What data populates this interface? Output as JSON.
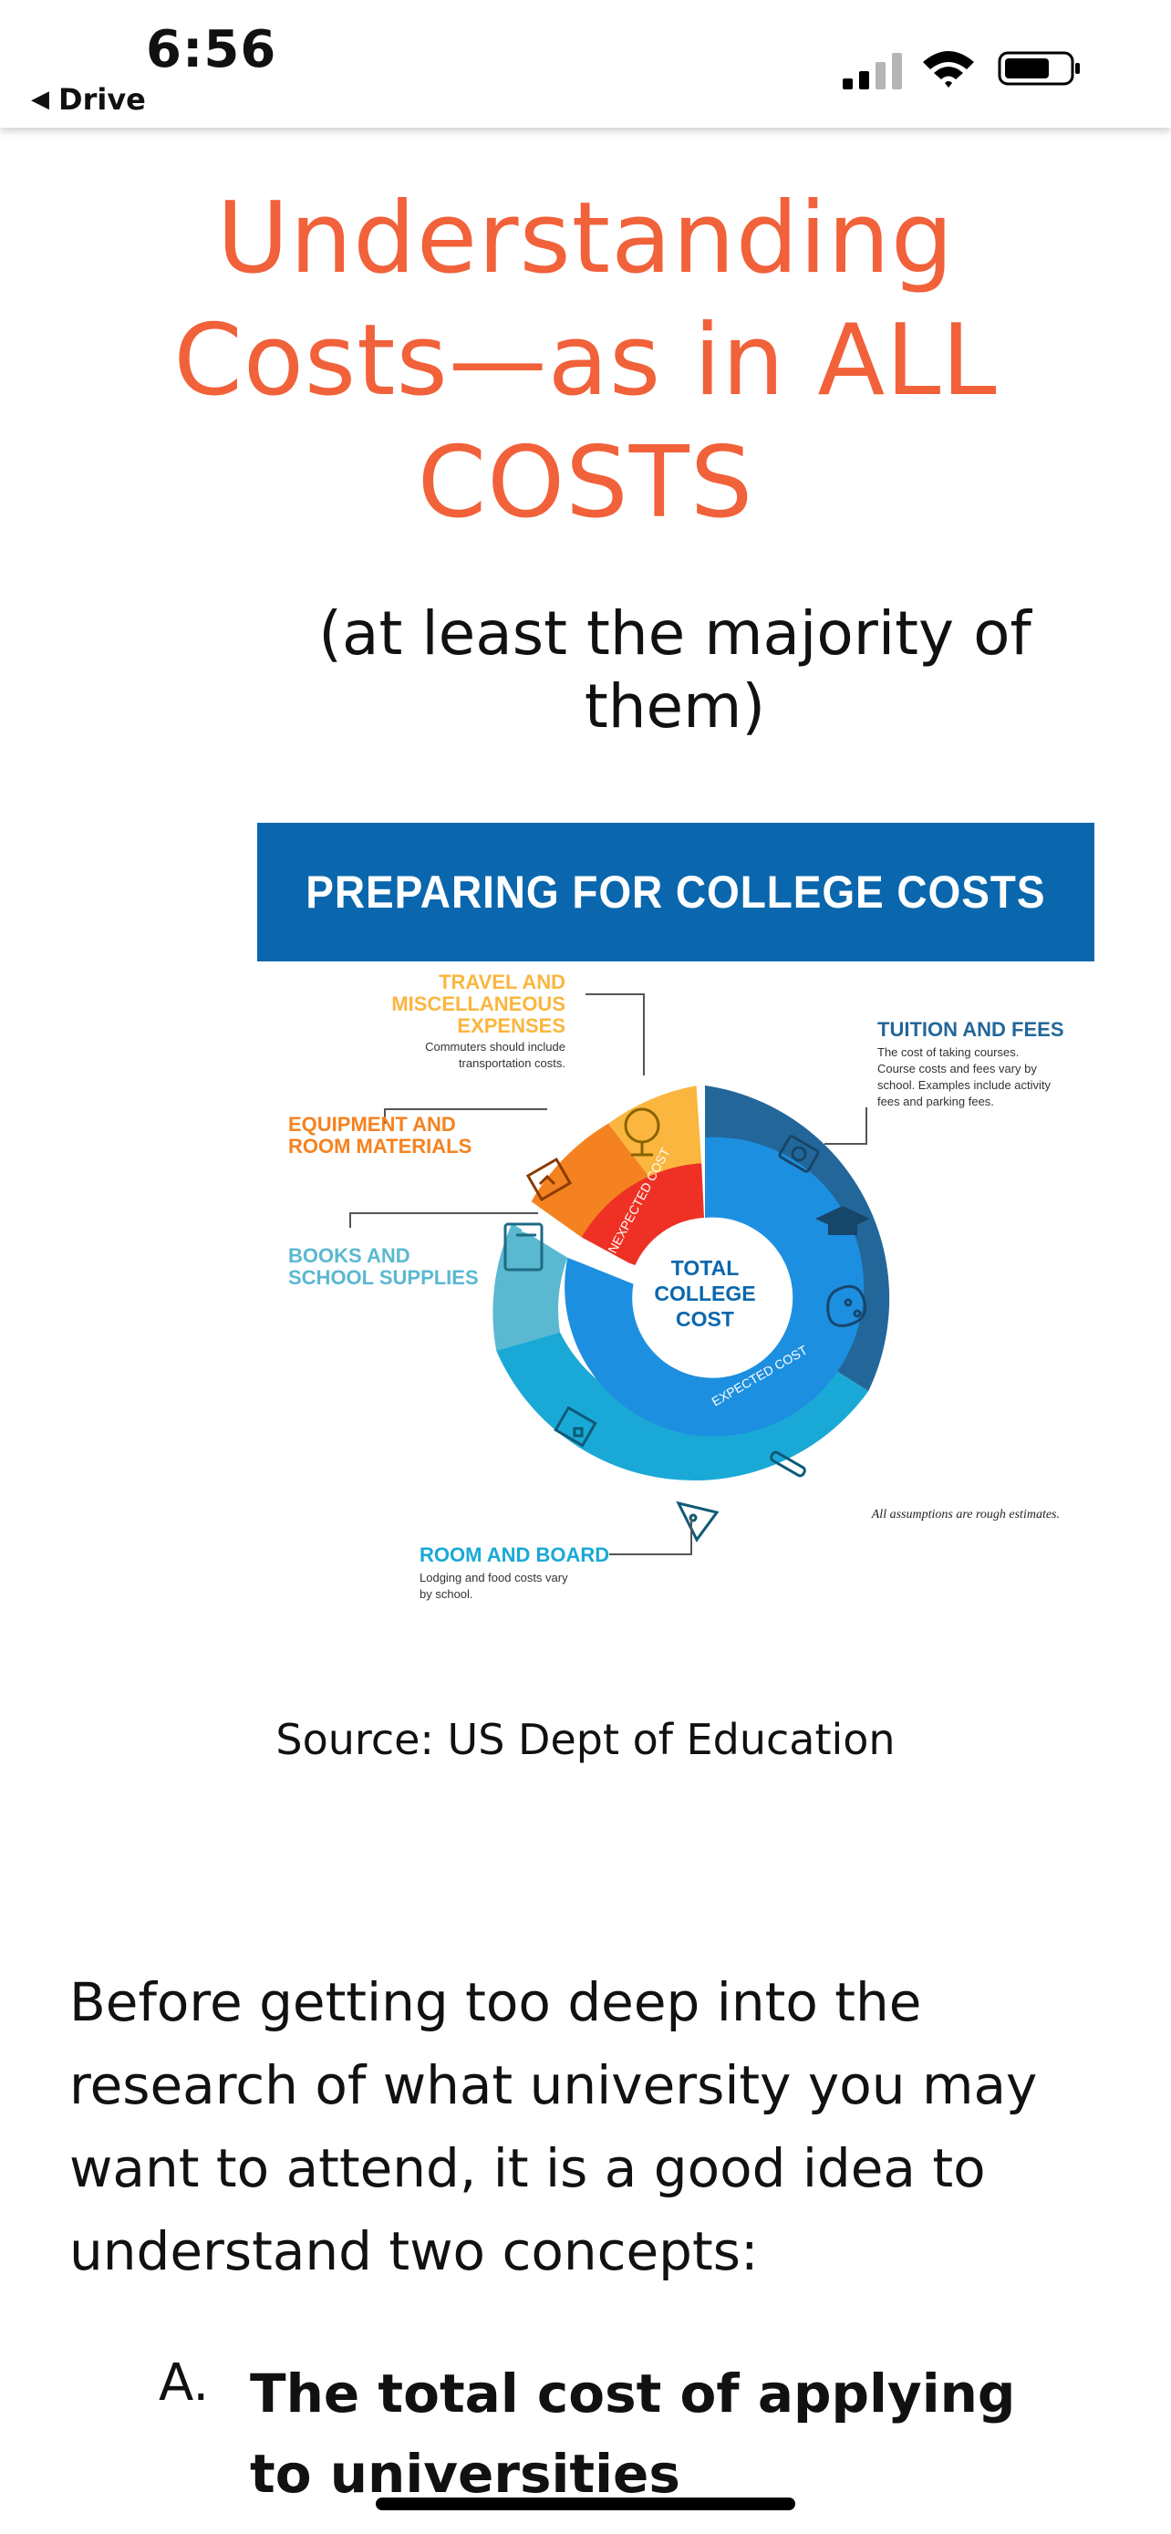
{
  "status_bar": {
    "time": "6:56",
    "back_label": "Drive"
  },
  "document": {
    "title_lines": [
      "Understanding",
      "Costs—as in ALL",
      "COSTS"
    ],
    "subtitle_lines": [
      "(at least the majority of",
      "them)"
    ],
    "source": "Source:  US Dept of Education",
    "paragraph": "Before getting too deep into the research of what university you may want to attend, it is a good idea to understand two concepts:",
    "list_item_a": {
      "marker": "A.",
      "text": "The total cost of applying to universities"
    }
  },
  "infographic": {
    "banner": "PREPARING FOR COLLEGE COSTS",
    "center_lines": [
      "TOTAL",
      "COLLEGE",
      "COST"
    ],
    "inner_labels": {
      "unexpected": "UNEXPECTED COST",
      "expected": "EXPECTED COST"
    },
    "categories": [
      {
        "id": "travel",
        "title_lines": [
          "TRAVEL AND",
          "MISCELLANEOUS",
          "EXPENSES"
        ],
        "desc_lines": [
          "Commuters should include",
          "transportation costs."
        ],
        "color": "#fbb63f",
        "icon": "globe-icon"
      },
      {
        "id": "tuition",
        "title_lines": [
          "TUITION AND FEES"
        ],
        "desc_lines": [
          "The cost of taking courses.",
          "Course costs and fees vary by",
          "school. Examples include activity",
          "fees and parking fees."
        ],
        "color": "#23679a",
        "icon": "graduation-cap-icon"
      },
      {
        "id": "equipment",
        "title_lines": [
          "EQUIPMENT AND",
          "ROOM MATERIALS"
        ],
        "desc_lines": [],
        "color": "#f58220",
        "icon": "easel-icon"
      },
      {
        "id": "books",
        "title_lines": [
          "BOOKS AND",
          "SCHOOL SUPPLIES"
        ],
        "desc_lines": [],
        "color": "#5bb8d1",
        "icon": "book-icon"
      },
      {
        "id": "room",
        "title_lines": [
          "ROOM AND BOARD"
        ],
        "desc_lines": [
          "Lodging and food costs vary",
          "by school."
        ],
        "color": "#1aa9d6",
        "icon": "pizza-icon"
      }
    ],
    "footnote": "All assumptions are rough estimates.",
    "colors": {
      "banner": "#0a67ad",
      "inner_expected": "#1d8fe0",
      "inner_unexpected": "#ee3124"
    }
  },
  "colors": {
    "title": "#f1613a"
  }
}
